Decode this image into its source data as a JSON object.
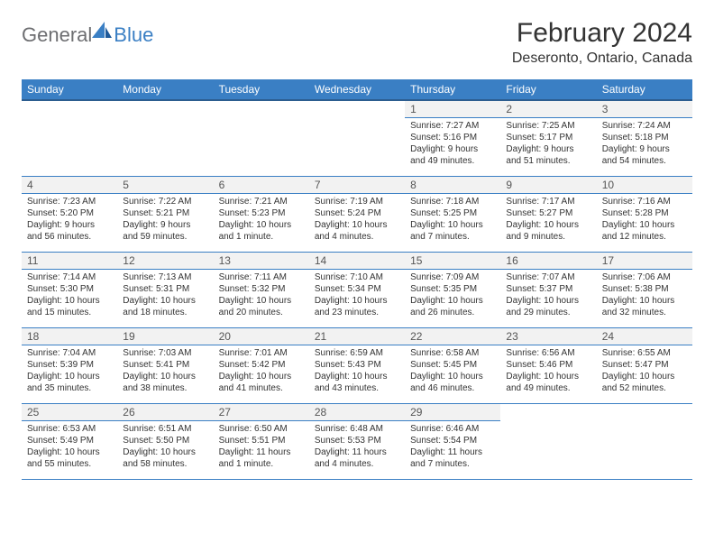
{
  "logo": {
    "text1": "General",
    "text2": "Blue"
  },
  "header": {
    "title": "February 2024",
    "location": "Deseronto, Ontario, Canada"
  },
  "colors": {
    "header_bg": "#3a7fc4",
    "header_border": "#2c5d8f",
    "daynum_bg": "#f2f2f2",
    "cell_border": "#3a7fc4",
    "logo_gray": "#6d6e71",
    "logo_blue": "#3a7fc4",
    "text": "#333333",
    "background": "#ffffff"
  },
  "typography": {
    "title_fontsize": 30,
    "location_fontsize": 16,
    "dayheader_fontsize": 12,
    "cell_fontsize": 10
  },
  "days_of_week": [
    "Sunday",
    "Monday",
    "Tuesday",
    "Wednesday",
    "Thursday",
    "Friday",
    "Saturday"
  ],
  "weeks": [
    [
      null,
      null,
      null,
      null,
      {
        "num": "1",
        "sunrise": "Sunrise: 7:27 AM",
        "sunset": "Sunset: 5:16 PM",
        "daylight": "Daylight: 9 hours and 49 minutes."
      },
      {
        "num": "2",
        "sunrise": "Sunrise: 7:25 AM",
        "sunset": "Sunset: 5:17 PM",
        "daylight": "Daylight: 9 hours and 51 minutes."
      },
      {
        "num": "3",
        "sunrise": "Sunrise: 7:24 AM",
        "sunset": "Sunset: 5:18 PM",
        "daylight": "Daylight: 9 hours and 54 minutes."
      }
    ],
    [
      {
        "num": "4",
        "sunrise": "Sunrise: 7:23 AM",
        "sunset": "Sunset: 5:20 PM",
        "daylight": "Daylight: 9 hours and 56 minutes."
      },
      {
        "num": "5",
        "sunrise": "Sunrise: 7:22 AM",
        "sunset": "Sunset: 5:21 PM",
        "daylight": "Daylight: 9 hours and 59 minutes."
      },
      {
        "num": "6",
        "sunrise": "Sunrise: 7:21 AM",
        "sunset": "Sunset: 5:23 PM",
        "daylight": "Daylight: 10 hours and 1 minute."
      },
      {
        "num": "7",
        "sunrise": "Sunrise: 7:19 AM",
        "sunset": "Sunset: 5:24 PM",
        "daylight": "Daylight: 10 hours and 4 minutes."
      },
      {
        "num": "8",
        "sunrise": "Sunrise: 7:18 AM",
        "sunset": "Sunset: 5:25 PM",
        "daylight": "Daylight: 10 hours and 7 minutes."
      },
      {
        "num": "9",
        "sunrise": "Sunrise: 7:17 AM",
        "sunset": "Sunset: 5:27 PM",
        "daylight": "Daylight: 10 hours and 9 minutes."
      },
      {
        "num": "10",
        "sunrise": "Sunrise: 7:16 AM",
        "sunset": "Sunset: 5:28 PM",
        "daylight": "Daylight: 10 hours and 12 minutes."
      }
    ],
    [
      {
        "num": "11",
        "sunrise": "Sunrise: 7:14 AM",
        "sunset": "Sunset: 5:30 PM",
        "daylight": "Daylight: 10 hours and 15 minutes."
      },
      {
        "num": "12",
        "sunrise": "Sunrise: 7:13 AM",
        "sunset": "Sunset: 5:31 PM",
        "daylight": "Daylight: 10 hours and 18 minutes."
      },
      {
        "num": "13",
        "sunrise": "Sunrise: 7:11 AM",
        "sunset": "Sunset: 5:32 PM",
        "daylight": "Daylight: 10 hours and 20 minutes."
      },
      {
        "num": "14",
        "sunrise": "Sunrise: 7:10 AM",
        "sunset": "Sunset: 5:34 PM",
        "daylight": "Daylight: 10 hours and 23 minutes."
      },
      {
        "num": "15",
        "sunrise": "Sunrise: 7:09 AM",
        "sunset": "Sunset: 5:35 PM",
        "daylight": "Daylight: 10 hours and 26 minutes."
      },
      {
        "num": "16",
        "sunrise": "Sunrise: 7:07 AM",
        "sunset": "Sunset: 5:37 PM",
        "daylight": "Daylight: 10 hours and 29 minutes."
      },
      {
        "num": "17",
        "sunrise": "Sunrise: 7:06 AM",
        "sunset": "Sunset: 5:38 PM",
        "daylight": "Daylight: 10 hours and 32 minutes."
      }
    ],
    [
      {
        "num": "18",
        "sunrise": "Sunrise: 7:04 AM",
        "sunset": "Sunset: 5:39 PM",
        "daylight": "Daylight: 10 hours and 35 minutes."
      },
      {
        "num": "19",
        "sunrise": "Sunrise: 7:03 AM",
        "sunset": "Sunset: 5:41 PM",
        "daylight": "Daylight: 10 hours and 38 minutes."
      },
      {
        "num": "20",
        "sunrise": "Sunrise: 7:01 AM",
        "sunset": "Sunset: 5:42 PM",
        "daylight": "Daylight: 10 hours and 41 minutes."
      },
      {
        "num": "21",
        "sunrise": "Sunrise: 6:59 AM",
        "sunset": "Sunset: 5:43 PM",
        "daylight": "Daylight: 10 hours and 43 minutes."
      },
      {
        "num": "22",
        "sunrise": "Sunrise: 6:58 AM",
        "sunset": "Sunset: 5:45 PM",
        "daylight": "Daylight: 10 hours and 46 minutes."
      },
      {
        "num": "23",
        "sunrise": "Sunrise: 6:56 AM",
        "sunset": "Sunset: 5:46 PM",
        "daylight": "Daylight: 10 hours and 49 minutes."
      },
      {
        "num": "24",
        "sunrise": "Sunrise: 6:55 AM",
        "sunset": "Sunset: 5:47 PM",
        "daylight": "Daylight: 10 hours and 52 minutes."
      }
    ],
    [
      {
        "num": "25",
        "sunrise": "Sunrise: 6:53 AM",
        "sunset": "Sunset: 5:49 PM",
        "daylight": "Daylight: 10 hours and 55 minutes."
      },
      {
        "num": "26",
        "sunrise": "Sunrise: 6:51 AM",
        "sunset": "Sunset: 5:50 PM",
        "daylight": "Daylight: 10 hours and 58 minutes."
      },
      {
        "num": "27",
        "sunrise": "Sunrise: 6:50 AM",
        "sunset": "Sunset: 5:51 PM",
        "daylight": "Daylight: 11 hours and 1 minute."
      },
      {
        "num": "28",
        "sunrise": "Sunrise: 6:48 AM",
        "sunset": "Sunset: 5:53 PM",
        "daylight": "Daylight: 11 hours and 4 minutes."
      },
      {
        "num": "29",
        "sunrise": "Sunrise: 6:46 AM",
        "sunset": "Sunset: 5:54 PM",
        "daylight": "Daylight: 11 hours and 7 minutes."
      },
      null,
      null
    ]
  ]
}
